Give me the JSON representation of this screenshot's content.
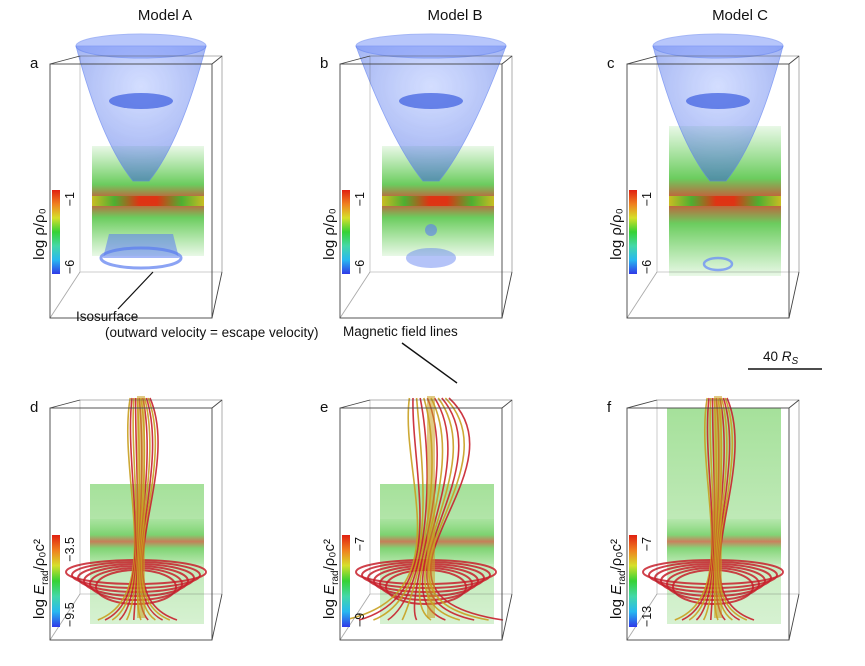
{
  "columns": [
    "Model A",
    "Model B",
    "Model C"
  ],
  "panels": [
    {
      "letter": "a",
      "row": "density",
      "model": "Model A"
    },
    {
      "letter": "b",
      "row": "density",
      "model": "Model B"
    },
    {
      "letter": "c",
      "row": "density",
      "model": "Model C"
    },
    {
      "letter": "d",
      "row": "radiation",
      "model": "Model A"
    },
    {
      "letter": "e",
      "row": "radiation",
      "model": "Model B"
    },
    {
      "letter": "f",
      "row": "radiation",
      "model": "Model C"
    }
  ],
  "colorbars": {
    "density_label": "log ρ/ρ₀",
    "density_max": "−1",
    "density_min": "−6",
    "radiation_label_prefix": "log ",
    "radiation_label_main": "E",
    "radiation_label_sub": "rad",
    "radiation_label_suffix": "/ρ₀c²",
    "a_max": "−1",
    "a_min": "−6",
    "b_max": "−1",
    "b_min": "−6",
    "c_max": "−1",
    "c_min": "−6",
    "d_max": "−3.5",
    "d_min": "−9.5",
    "e_max": "−7",
    "e_min": "−9",
    "f_max": "−7",
    "f_min": "−13",
    "stops": [
      "#2f39e8",
      "#28b8f0",
      "#44d8a8",
      "#35d235",
      "#d6e02a",
      "#f08020",
      "#e02010"
    ]
  },
  "annotations": {
    "isosurface_title": "Isosurface",
    "isosurface_detail": "(outward velocity = escape velocity)",
    "field_lines": "Magnetic field lines",
    "scale_value": "40 ",
    "scale_symbol": "R",
    "scale_sub": "S"
  },
  "colors": {
    "isosurface": "#4a6fe8",
    "disk_green": "#48c034",
    "disk_red": "#d81e10",
    "field_line_red": "#c8202c",
    "field_line_gold": "#c8a020",
    "box_line": "#444444"
  }
}
